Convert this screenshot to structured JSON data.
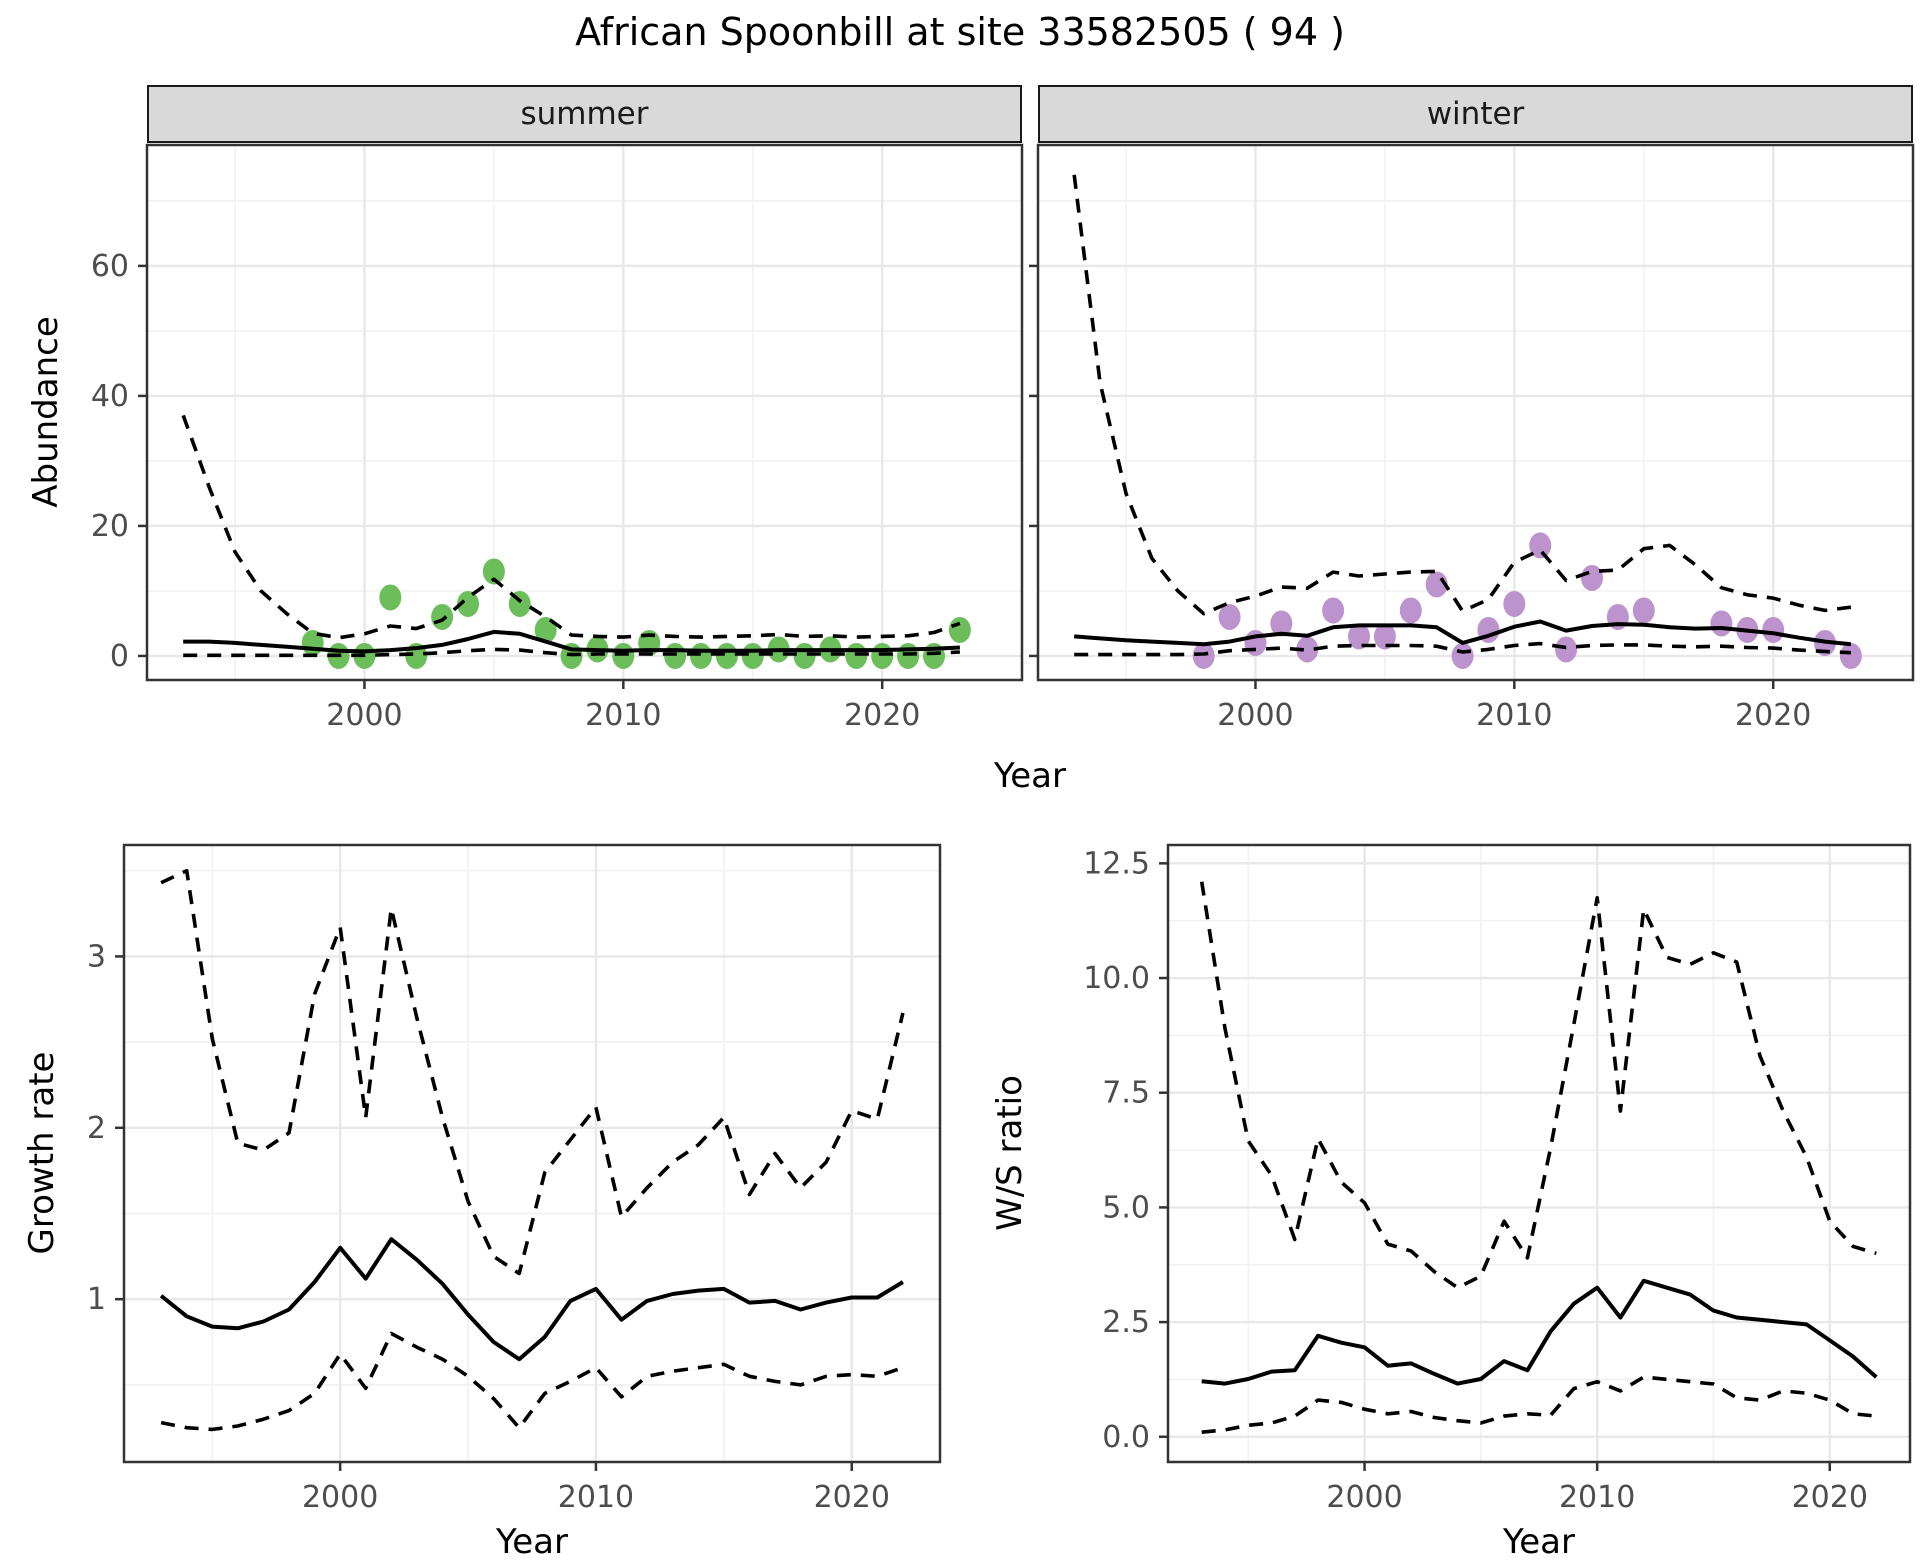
{
  "title": "African Spoonbill at site 33582505 ( 94 )",
  "facets": {
    "summer": "summer",
    "winter": "winter"
  },
  "axis_labels": {
    "abundance": "Abundance",
    "year_top": "Year",
    "growth_rate": "Growth rate",
    "ws_ratio": "W/S ratio",
    "year_growth": "Year",
    "year_ratio": "Year"
  },
  "colors": {
    "summer_point": "#6CBE5B",
    "winter_point": "#BD93CE",
    "line": "#000000",
    "grid_major": "#E8E8E8",
    "grid_minor": "#F2F2F2",
    "panel_border": "#333333",
    "strip_bg": "#D9D9D9",
    "tick_text": "#4D4D4D",
    "panel_bg": "#FFFFFF"
  },
  "chart_data": [
    {
      "id": "abundance-summer",
      "type": "line",
      "facet_label": "summer",
      "xlabel": "Year",
      "ylabel": "Abundance",
      "xlim": [
        1991.6,
        2025.4
      ],
      "ylim": [
        -3.7,
        78.6
      ],
      "x_ticks": [
        2000,
        2010,
        2020
      ],
      "x_tick_labels": [
        "2000",
        "2010",
        "2020"
      ],
      "x_minor": [
        1995,
        2005,
        2015
      ],
      "y_ticks": [
        0,
        20,
        40,
        60
      ],
      "y_tick_labels": [
        "0",
        "20",
        "40",
        "60"
      ],
      "y_minor": [
        10,
        30,
        50,
        70
      ],
      "show_y_tick_labels": true,
      "years": [
        1993,
        1994,
        1995,
        1996,
        1997,
        1998,
        1999,
        2000,
        2001,
        2002,
        2003,
        2004,
        2005,
        2006,
        2007,
        2008,
        2009,
        2010,
        2011,
        2012,
        2013,
        2014,
        2015,
        2016,
        2017,
        2018,
        2019,
        2020,
        2021,
        2022,
        2023
      ],
      "series": [
        {
          "name": "median",
          "style": "solid",
          "values": [
            2.2,
            2.2,
            2.0,
            1.7,
            1.4,
            1.1,
            0.8,
            0.7,
            0.9,
            1.2,
            1.7,
            2.6,
            3.7,
            3.4,
            2.2,
            1.0,
            0.9,
            0.8,
            0.9,
            0.9,
            0.8,
            0.8,
            0.8,
            0.9,
            0.9,
            0.9,
            0.9,
            0.9,
            1.0,
            1.1,
            1.3
          ]
        },
        {
          "name": "upper_ci",
          "style": "dashed",
          "values": [
            37,
            26,
            16,
            10,
            6.5,
            3.5,
            2.8,
            3.4,
            4.6,
            4.2,
            5.5,
            9,
            11.8,
            8.5,
            6,
            3.2,
            3.0,
            2.9,
            3.2,
            3.0,
            2.9,
            3.0,
            3.1,
            3.3,
            3.0,
            3.1,
            2.9,
            3.0,
            3.1,
            3.6,
            5.0
          ]
        },
        {
          "name": "lower_ci",
          "style": "dashed",
          "values": [
            0.1,
            0.1,
            0.1,
            0.1,
            0.1,
            0.1,
            0.1,
            0.1,
            0.2,
            0.3,
            0.5,
            0.8,
            1.0,
            0.9,
            0.5,
            0.2,
            0.3,
            0.3,
            0.3,
            0.3,
            0.3,
            0.3,
            0.3,
            0.3,
            0.3,
            0.3,
            0.3,
            0.3,
            0.3,
            0.4,
            0.6
          ]
        }
      ],
      "observed": {
        "color_key": "summer_point",
        "years": [
          1998,
          1999,
          2000,
          2001,
          2002,
          2003,
          2004,
          2005,
          2006,
          2007,
          2008,
          2009,
          2010,
          2011,
          2012,
          2013,
          2014,
          2015,
          2016,
          2017,
          2018,
          2019,
          2020,
          2021,
          2022,
          2023
        ],
        "values": [
          2,
          0,
          0,
          9,
          0,
          6,
          8,
          13,
          8,
          4,
          0,
          1,
          0,
          2,
          0,
          0,
          0,
          0,
          1,
          0,
          1,
          0,
          0,
          0,
          0,
          4
        ]
      }
    },
    {
      "id": "abundance-winter",
      "type": "line",
      "facet_label": "winter",
      "xlabel": "Year",
      "ylabel": "Abundance",
      "xlim": [
        1991.6,
        2025.4
      ],
      "ylim": [
        -3.7,
        78.6
      ],
      "x_ticks": [
        2000,
        2010,
        2020
      ],
      "x_tick_labels": [
        "2000",
        "2010",
        "2020"
      ],
      "x_minor": [
        1995,
        2005,
        2015
      ],
      "y_ticks": [
        0,
        20,
        40,
        60
      ],
      "y_tick_labels": [
        "0",
        "20",
        "40",
        "60"
      ],
      "y_minor": [
        10,
        30,
        50,
        70
      ],
      "show_y_tick_labels": false,
      "years": [
        1993,
        1994,
        1995,
        1996,
        1997,
        1998,
        1999,
        2000,
        2001,
        2002,
        2003,
        2004,
        2005,
        2006,
        2007,
        2008,
        2009,
        2010,
        2011,
        2012,
        2013,
        2014,
        2015,
        2016,
        2017,
        2018,
        2019,
        2020,
        2021,
        2022,
        2023
      ],
      "series": [
        {
          "name": "median",
          "style": "solid",
          "values": [
            3.0,
            2.7,
            2.4,
            2.2,
            2.0,
            1.8,
            2.2,
            3.0,
            3.4,
            3.1,
            4.4,
            4.7,
            4.7,
            4.7,
            4.4,
            2.0,
            3.1,
            4.5,
            5.3,
            3.9,
            4.6,
            4.9,
            4.8,
            4.4,
            4.2,
            4.3,
            3.9,
            3.5,
            2.8,
            2.2,
            1.8
          ]
        },
        {
          "name": "upper_ci",
          "style": "dashed",
          "values": [
            74,
            42,
            25,
            15,
            10,
            6.5,
            8.2,
            9.2,
            10.6,
            10.4,
            12.9,
            12.3,
            12.6,
            12.9,
            13.0,
            6.9,
            8.7,
            14.4,
            16.3,
            11.6,
            13.0,
            13.2,
            16.5,
            17.0,
            14.0,
            10.5,
            9.4,
            8.9,
            7.8,
            7.0,
            7.5
          ]
        },
        {
          "name": "lower_ci",
          "style": "dashed",
          "values": [
            0.2,
            0.2,
            0.2,
            0.2,
            0.2,
            0.3,
            0.8,
            1.0,
            1.2,
            0.9,
            1.5,
            1.6,
            1.6,
            1.6,
            1.5,
            0.6,
            1.0,
            1.6,
            1.9,
            1.3,
            1.6,
            1.7,
            1.7,
            1.5,
            1.4,
            1.5,
            1.3,
            1.2,
            0.9,
            0.7,
            0.5
          ]
        }
      ],
      "observed": {
        "color_key": "winter_point",
        "years": [
          1998,
          1999,
          2000,
          2001,
          2002,
          2003,
          2004,
          2005,
          2006,
          2007,
          2008,
          2009,
          2010,
          2011,
          2012,
          2013,
          2014,
          2015,
          2018,
          2019,
          2020,
          2022,
          2023
        ],
        "values": [
          0,
          6,
          2,
          5,
          1,
          7,
          3,
          3,
          7,
          11,
          0,
          4,
          8,
          17,
          1,
          12,
          6,
          7,
          5,
          4,
          4,
          2,
          0
        ]
      }
    },
    {
      "id": "growth-rate",
      "type": "line",
      "facet_label": "",
      "xlabel": "Year",
      "ylabel": "Growth rate",
      "xlim": [
        1991.55,
        2023.45
      ],
      "ylim": [
        0.05,
        3.65
      ],
      "x_ticks": [
        2000,
        2010,
        2020
      ],
      "x_tick_labels": [
        "2000",
        "2010",
        "2020"
      ],
      "x_minor": [
        1995,
        2005,
        2015
      ],
      "y_ticks": [
        1,
        2,
        3
      ],
      "y_tick_labels": [
        "1",
        "2",
        "3"
      ],
      "y_minor": [
        0.5,
        1.5,
        2.5,
        3.5
      ],
      "show_y_tick_labels": true,
      "years": [
        1993,
        1994,
        1995,
        1996,
        1997,
        1998,
        1999,
        2000,
        2001,
        2002,
        2003,
        2004,
        2005,
        2006,
        2007,
        2008,
        2009,
        2010,
        2011,
        2012,
        2013,
        2014,
        2015,
        2016,
        2017,
        2018,
        2019,
        2020,
        2021,
        2022
      ],
      "series": [
        {
          "name": "median",
          "style": "solid",
          "values": [
            1.02,
            0.9,
            0.84,
            0.83,
            0.87,
            0.94,
            1.1,
            1.3,
            1.12,
            1.35,
            1.23,
            1.09,
            0.91,
            0.75,
            0.65,
            0.78,
            0.99,
            1.06,
            0.88,
            0.99,
            1.03,
            1.05,
            1.06,
            0.98,
            0.99,
            0.94,
            0.98,
            1.01,
            1.01,
            1.1
          ]
        },
        {
          "name": "upper_ci",
          "style": "dashed",
          "values": [
            3.43,
            3.5,
            2.52,
            1.91,
            1.87,
            1.97,
            2.78,
            3.17,
            2.06,
            3.28,
            2.64,
            2.06,
            1.57,
            1.25,
            1.15,
            1.74,
            1.93,
            2.12,
            1.48,
            1.65,
            1.8,
            1.9,
            2.06,
            1.61,
            1.85,
            1.65,
            1.8,
            2.1,
            2.05,
            2.67
          ]
        },
        {
          "name": "lower_ci",
          "style": "dashed",
          "values": [
            0.28,
            0.25,
            0.24,
            0.26,
            0.3,
            0.35,
            0.45,
            0.68,
            0.48,
            0.8,
            0.72,
            0.65,
            0.55,
            0.42,
            0.25,
            0.45,
            0.52,
            0.6,
            0.43,
            0.55,
            0.58,
            0.6,
            0.62,
            0.55,
            0.52,
            0.5,
            0.55,
            0.56,
            0.55,
            0.6
          ]
        }
      ],
      "observed": {
        "color_key": "",
        "years": [],
        "values": []
      }
    },
    {
      "id": "ws-ratio",
      "type": "line",
      "facet_label": "",
      "xlabel": "Year",
      "ylabel": "W/S ratio",
      "xlim": [
        1991.55,
        2023.45
      ],
      "ylim": [
        -0.55,
        12.9
      ],
      "x_ticks": [
        2000,
        2010,
        2020
      ],
      "x_tick_labels": [
        "2000",
        "2010",
        "2020"
      ],
      "x_minor": [
        1995,
        2005,
        2015
      ],
      "y_ticks": [
        0,
        2.5,
        5,
        7.5,
        10,
        12.5
      ],
      "y_tick_labels": [
        "0.0",
        "2.5",
        "5.0",
        "7.5",
        "10.0",
        "12.5"
      ],
      "y_minor": [
        1.25,
        3.75,
        6.25,
        8.75,
        11.25
      ],
      "show_y_tick_labels": true,
      "years": [
        1993,
        1994,
        1995,
        1996,
        1997,
        1998,
        1999,
        2000,
        2001,
        2002,
        2003,
        2004,
        2005,
        2006,
        2007,
        2008,
        2009,
        2010,
        2011,
        2012,
        2013,
        2014,
        2015,
        2016,
        2017,
        2018,
        2019,
        2020,
        2021,
        2022
      ],
      "series": [
        {
          "name": "median",
          "style": "solid",
          "values": [
            1.21,
            1.16,
            1.26,
            1.42,
            1.45,
            2.2,
            2.05,
            1.95,
            1.55,
            1.6,
            1.37,
            1.16,
            1.26,
            1.65,
            1.45,
            2.3,
            2.9,
            3.25,
            2.6,
            3.4,
            3.25,
            3.1,
            2.75,
            2.6,
            2.55,
            2.5,
            2.45,
            2.1,
            1.75,
            1.3
          ]
        },
        {
          "name": "upper_ci",
          "style": "dashed",
          "values": [
            12.1,
            8.9,
            6.45,
            5.7,
            4.3,
            6.5,
            5.55,
            5.1,
            4.2,
            4.05,
            3.6,
            3.25,
            3.5,
            4.7,
            3.9,
            6.3,
            9.0,
            11.75,
            7.1,
            11.5,
            10.45,
            10.3,
            10.55,
            10.35,
            8.3,
            7.1,
            6.1,
            4.7,
            4.15,
            4.0
          ]
        },
        {
          "name": "lower_ci",
          "style": "dashed",
          "values": [
            0.1,
            0.15,
            0.25,
            0.3,
            0.45,
            0.8,
            0.75,
            0.6,
            0.5,
            0.55,
            0.42,
            0.35,
            0.3,
            0.45,
            0.5,
            0.47,
            1.05,
            1.2,
            1.0,
            1.3,
            1.25,
            1.2,
            1.15,
            0.85,
            0.8,
            1.0,
            0.95,
            0.8,
            0.5,
            0.45
          ]
        }
      ],
      "observed": {
        "color_key": "",
        "years": [],
        "values": []
      }
    }
  ]
}
